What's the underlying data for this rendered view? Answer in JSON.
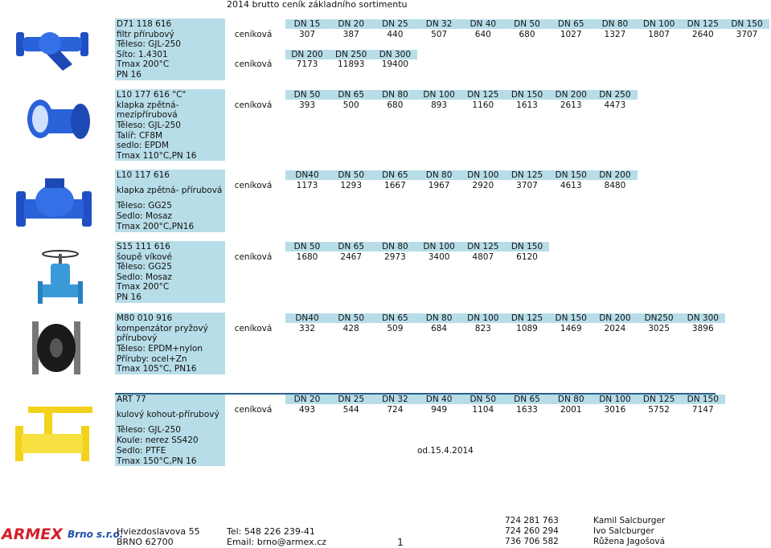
{
  "header": {
    "title": "2014 brutto ceník základního sortimentu"
  },
  "sections": [
    {
      "desc": [
        "D71 118 616",
        "filtr přírubový",
        "Těleso: GJL-250",
        "Síto: 1.4301",
        "Tmax 200°C",
        "PN 16"
      ],
      "rows": [
        {
          "sizes": [
            "DN 15",
            "DN 20",
            "DN 25",
            "DN 32",
            "DN 40",
            "DN 50",
            "DN 65",
            "DN 80",
            "DN 100",
            "DN 125",
            "DN 150"
          ],
          "label": "ceníková",
          "prices": [
            "307",
            "387",
            "440",
            "507",
            "640",
            "680",
            "1027",
            "1327",
            "1807",
            "2640",
            "3707"
          ]
        },
        {
          "sizes": [
            "DN 200",
            "DN 250",
            "DN 300"
          ],
          "label": "ceníková",
          "prices": [
            "7173",
            "11893",
            "19400"
          ]
        }
      ]
    },
    {
      "desc": [
        "L10 177 616 \"C\"",
        "klapka zpětná-",
        "mezipřírubová",
        "Těleso: GJL-250",
        "Talíř: CF8M",
        "sedlo: EPDM",
        "Tmax 110°C,PN 16"
      ],
      "rows": [
        {
          "sizes": [
            "DN 50",
            "DN 65",
            "DN 80",
            "DN 100",
            "DN 125",
            "DN 150",
            "DN 200",
            "DN 250"
          ],
          "label": "ceníková",
          "prices": [
            "393",
            "500",
            "680",
            "893",
            "1160",
            "1613",
            "2613",
            "4473"
          ]
        }
      ]
    },
    {
      "desc": [
        "L10 117 616",
        "klapka zpětná- přírubová",
        "Těleso: GG25",
        "Sedlo: Mosaz",
        "Tmax 200°C,PN16"
      ],
      "rows": [
        {
          "sizes": [
            "DN40",
            "DN 50",
            "DN 65",
            "DN 80",
            "DN 100",
            "DN 125",
            "DN 150",
            "DN 200"
          ],
          "label": "ceníková",
          "prices": [
            "1173",
            "1293",
            "1667",
            "1967",
            "2920",
            "3707",
            "4613",
            "8480"
          ]
        }
      ]
    },
    {
      "desc": [
        "S15 111 616",
        "šoupě víkové",
        "Těleso: GG25",
        "Sedlo: Mosaz",
        "Tmax 200°C",
        "PN 16"
      ],
      "rows": [
        {
          "sizes": [
            "DN 50",
            "DN 65",
            "DN 80",
            "DN 100",
            "DN 125",
            "DN 150"
          ],
          "label": "ceníková",
          "prices": [
            "1680",
            "2467",
            "2973",
            "3400",
            "4807",
            "6120"
          ]
        }
      ]
    },
    {
      "desc": [
        "M80 010 916",
        "kompenzátor pryžový",
        "přírubový",
        "Těleso: EPDM+nylon",
        "Příruby: ocel+Zn",
        "Tmax 105°C, PN16"
      ],
      "rows": [
        {
          "sizes": [
            "DN40",
            "DN 50",
            "DN 65",
            "DN 80",
            "DN 100",
            "DN 125",
            "DN 150",
            "DN 200",
            "DN250",
            "DN 300"
          ],
          "label": "ceníková",
          "prices": [
            "332",
            "428",
            "509",
            "684",
            "823",
            "1089",
            "1469",
            "2024",
            "3025",
            "3896"
          ]
        }
      ]
    },
    {
      "desc": [
        "ART 77",
        "kulový kohout-přírubový",
        "Těleso: GJL-250",
        "Koule: nerez SS420",
        "Sedlo: PTFE",
        "Tmax 150°C,PN 16"
      ],
      "rows": [
        {
          "sizes": [
            "DN 20",
            "DN 25",
            "DN 32",
            "DN 40",
            "DN 50",
            "DN 65",
            "DN 80",
            "DN 100",
            "DN 125",
            "DN 150"
          ],
          "label": "ceníková",
          "prices": [
            "493",
            "544",
            "724",
            "949",
            "1104",
            "1633",
            "2001",
            "3016",
            "5752",
            "7147"
          ]
        }
      ]
    }
  ],
  "note": "od.15.4.2014",
  "footer": {
    "brand": "ARMEX",
    "brand_suffix": "Brno s.r.o.",
    "address": [
      "Hviezdoslavova 55",
      "BRNO 62700"
    ],
    "contact": [
      "Tel: 548 226 239-41",
      "Email: brno@armex.cz"
    ],
    "page": "1",
    "phones": [
      "724 281 763",
      "724 260 294",
      "736 706 582"
    ],
    "names": [
      "Kamil Salcburger",
      "Ivo Salcburger",
      "Růžena Jagošová"
    ]
  }
}
